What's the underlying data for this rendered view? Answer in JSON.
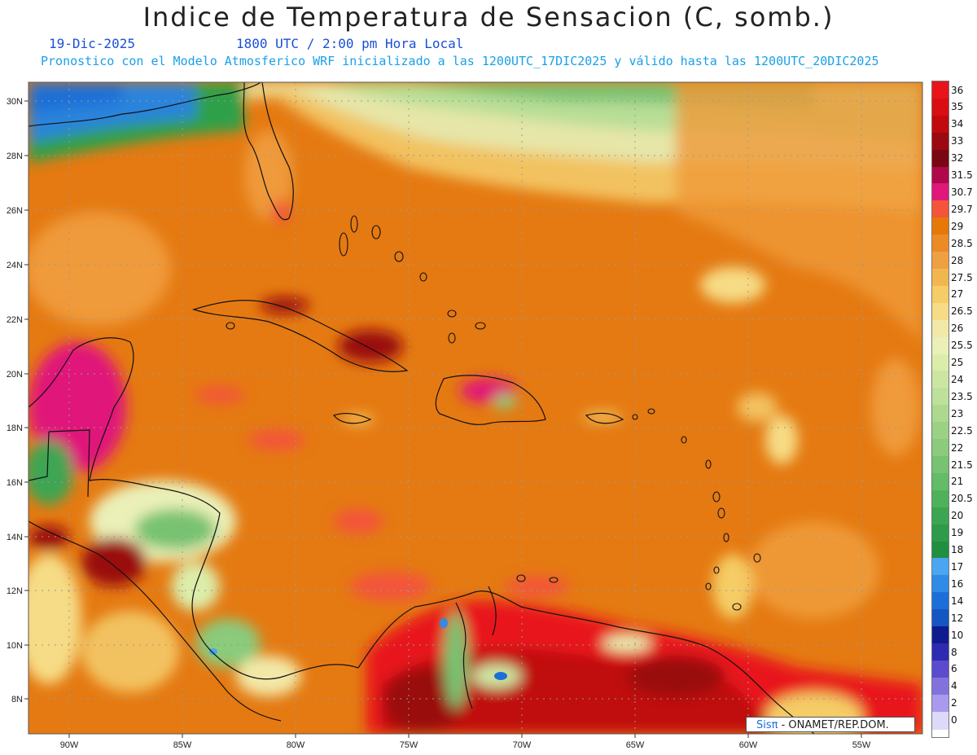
{
  "header": {
    "title": "Indice de Temperatura de Sensacion (C, somb.)",
    "date": "19-Dic-2025",
    "time": "1800 UTC / 2:00 pm Hora Local",
    "model_note": "Pronostico con el Modelo Atmosferico WRF inicializado a las 1200UTC_17DIC2025 y válido hasta las  1200UTC_20DIC2025"
  },
  "axes": {
    "lat_labels": [
      "30N",
      "28N",
      "26N",
      "24N",
      "22N",
      "20N",
      "18N",
      "16N",
      "14N",
      "12N",
      "10N",
      "8N"
    ],
    "lon_labels": [
      "90W",
      "85W",
      "80W",
      "75W",
      "70W",
      "65W",
      "60W",
      "55W"
    ]
  },
  "legend": {
    "levels": [
      "36",
      "35",
      "34",
      "33",
      "32",
      "31.5",
      "30.7",
      "29.7",
      "29",
      "28.5",
      "28",
      "27.5",
      "27",
      "26.5",
      "26",
      "25.5",
      "25",
      "24",
      "23.5",
      "23",
      "22.5",
      "22",
      "21.5",
      "21",
      "20.5",
      "20",
      "19",
      "18",
      "17",
      "16",
      "14",
      "12",
      "10",
      "8",
      "6",
      "4",
      "2",
      "0"
    ],
    "colors": [
      "#e8141a",
      "#d80e12",
      "#c00a0e",
      "#9a0a10",
      "#7a0612",
      "#b0084a",
      "#e0187a",
      "#f3543a",
      "#e67808",
      "#ec8a26",
      "#efa042",
      "#f2b64e",
      "#f5cc66",
      "#f6dc86",
      "#f2e8a8",
      "#eaf0b8",
      "#dcedaa",
      "#cce6a2",
      "#bde09a",
      "#acd98e",
      "#9bd184",
      "#8acb7c",
      "#77c371",
      "#64bb68",
      "#50b15c",
      "#3ca552",
      "#2e9b4a",
      "#209040",
      "#4aa6f0",
      "#2f8be6",
      "#1c6fd8",
      "#1456c2",
      "#101c8e",
      "#2f2ab2",
      "#5a4ccc",
      "#8272de",
      "#aa9aee",
      "#dcdaf8"
    ]
  },
  "badge": {
    "brand": "Sisπ",
    "text": " - ONAMET/REP.DOM."
  }
}
